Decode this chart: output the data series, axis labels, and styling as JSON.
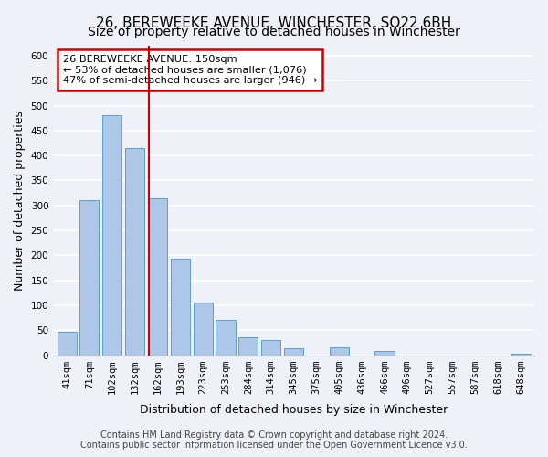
{
  "title": "26, BEREWEEKE AVENUE, WINCHESTER, SO22 6BH",
  "subtitle": "Size of property relative to detached houses in Winchester",
  "xlabel": "Distribution of detached houses by size in Winchester",
  "ylabel": "Number of detached properties",
  "bar_labels": [
    "41sqm",
    "71sqm",
    "102sqm",
    "132sqm",
    "162sqm",
    "193sqm",
    "223sqm",
    "253sqm",
    "284sqm",
    "314sqm",
    "345sqm",
    "375sqm",
    "405sqm",
    "436sqm",
    "466sqm",
    "496sqm",
    "527sqm",
    "557sqm",
    "587sqm",
    "618sqm",
    "648sqm"
  ],
  "bar_values": [
    47,
    310,
    480,
    415,
    315,
    193,
    105,
    70,
    36,
    30,
    14,
    0,
    15,
    0,
    8,
    0,
    0,
    0,
    0,
    0,
    3
  ],
  "bar_color": "#aec6e8",
  "bar_edge_color": "#5a9fd4",
  "ylim": [
    0,
    620
  ],
  "yticks": [
    0,
    50,
    100,
    150,
    200,
    250,
    300,
    350,
    400,
    450,
    500,
    550,
    600
  ],
  "annotation_title": "26 BEREWEEKE AVENUE: 150sqm",
  "annotation_line1": "← 53% of detached houses are smaller (1,076)",
  "annotation_line2": "47% of semi-detached houses are larger (946) →",
  "annotation_box_color": "#ffffff",
  "annotation_box_edge_color": "#cc0000",
  "property_line_x": 3.6,
  "footer_line1": "Contains HM Land Registry data © Crown copyright and database right 2024.",
  "footer_line2": "Contains public sector information licensed under the Open Government Licence v3.0.",
  "background_color": "#eef2f8",
  "grid_color": "#ffffff",
  "title_fontsize": 11,
  "subtitle_fontsize": 10,
  "axis_label_fontsize": 9,
  "tick_fontsize": 7.5,
  "annotation_fontsize": 8.2,
  "footer_fontsize": 7
}
